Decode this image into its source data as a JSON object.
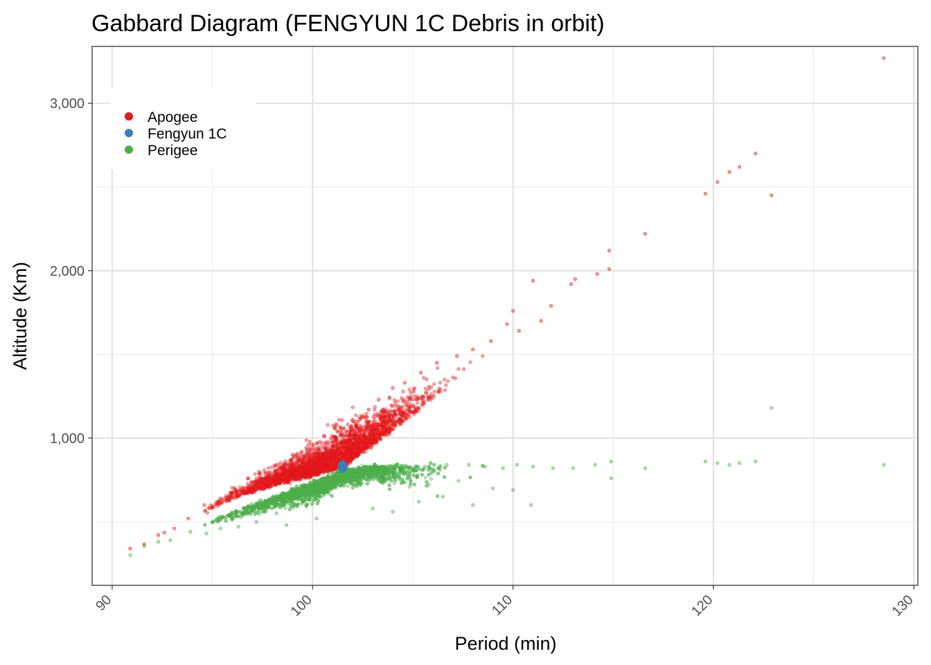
{
  "chart_data": {
    "type": "scatter",
    "title": "Gabbard Diagram (FENGYUN 1C Debris in orbit)",
    "xlabel": "Period (min)",
    "ylabel": "Altitude (Km)",
    "xlim": [
      89.0,
      130.2
    ],
    "ylim": [
      120,
      3340
    ],
    "x_ticks": [
      90,
      100,
      110,
      120,
      130
    ],
    "x_tick_labels": [
      "90",
      "100",
      "110",
      "120",
      "130"
    ],
    "y_ticks": [
      1000,
      2000,
      3000
    ],
    "y_tick_labels": [
      "1,000",
      "2,000",
      "3,000"
    ],
    "x_minor_ticks": [
      95,
      105,
      115,
      125
    ],
    "y_minor_ticks": [
      500,
      1500,
      2500
    ],
    "grid": true,
    "legend_position": "top-left",
    "series": [
      {
        "name": "Apogee",
        "color": "#e41a1c",
        "point_count": 3000,
        "values": [
          [
            90.9,
            340
          ],
          [
            91.6,
            365
          ],
          [
            92.3,
            420
          ],
          [
            92.6,
            435
          ],
          [
            93.1,
            460
          ],
          [
            93.8,
            520
          ],
          [
            94.6,
            600
          ],
          [
            95.4,
            640
          ],
          [
            96.1,
            700
          ],
          [
            96.8,
            760
          ],
          [
            97.4,
            790
          ],
          [
            98.2,
            840
          ],
          [
            99.0,
            900
          ],
          [
            99.8,
            960
          ],
          [
            100.6,
            1010
          ],
          [
            101.4,
            1060
          ],
          [
            102.0,
            1110
          ],
          [
            102.8,
            1170
          ],
          [
            103.3,
            1230
          ],
          [
            104.0,
            1300
          ],
          [
            104.6,
            1330
          ],
          [
            105.4,
            1390
          ],
          [
            106.2,
            1450
          ],
          [
            107.2,
            1490
          ],
          [
            108.0,
            1530
          ],
          [
            108.9,
            1580
          ],
          [
            109.7,
            1680
          ],
          [
            110.0,
            1760
          ],
          [
            110.3,
            1640
          ],
          [
            111.0,
            1940
          ],
          [
            111.4,
            1700
          ],
          [
            111.9,
            1790
          ],
          [
            112.9,
            1920
          ],
          [
            113.1,
            1950
          ],
          [
            114.2,
            1980
          ],
          [
            114.8,
            2010
          ],
          [
            114.8,
            2120
          ],
          [
            116.6,
            2220
          ],
          [
            119.6,
            2460
          ],
          [
            120.2,
            2530
          ],
          [
            120.8,
            2590
          ],
          [
            121.3,
            2620
          ],
          [
            122.1,
            2700
          ],
          [
            122.9,
            2450
          ],
          [
            128.5,
            3270
          ]
        ]
      },
      {
        "name": "Fengyun 1C",
        "color": "#377eb8",
        "point_count": 1,
        "values": [
          [
            101.5,
            830
          ]
        ]
      },
      {
        "name": "Perigee",
        "color": "#4daf4a",
        "point_count": 3000,
        "values": [
          [
            90.9,
            300
          ],
          [
            91.6,
            355
          ],
          [
            92.3,
            380
          ],
          [
            92.9,
            390
          ],
          [
            93.9,
            440
          ],
          [
            94.7,
            430
          ],
          [
            95.4,
            460
          ],
          [
            96.3,
            470
          ],
          [
            97.2,
            500
          ],
          [
            98.2,
            550
          ],
          [
            99.1,
            600
          ],
          [
            100.0,
            680
          ],
          [
            101.0,
            740
          ],
          [
            101.8,
            790
          ],
          [
            102.5,
            820
          ],
          [
            103.4,
            830
          ],
          [
            104.5,
            835
          ],
          [
            105.6,
            830
          ],
          [
            106.7,
            840
          ],
          [
            107.8,
            840
          ],
          [
            108.6,
            830
          ],
          [
            109.5,
            820
          ],
          [
            110.2,
            840
          ],
          [
            111.0,
            830
          ],
          [
            112.0,
            820
          ],
          [
            113.0,
            820
          ],
          [
            114.1,
            840
          ],
          [
            114.9,
            860
          ],
          [
            114.9,
            760
          ],
          [
            116.6,
            820
          ],
          [
            119.6,
            860
          ],
          [
            120.2,
            850
          ],
          [
            120.8,
            840
          ],
          [
            121.3,
            850
          ],
          [
            122.1,
            860
          ],
          [
            122.9,
            1180
          ],
          [
            128.5,
            840
          ],
          [
            105.3,
            620
          ],
          [
            106.5,
            650
          ],
          [
            108.0,
            600
          ],
          [
            109.0,
            700
          ],
          [
            110.0,
            690
          ],
          [
            110.9,
            600
          ],
          [
            104.0,
            560
          ],
          [
            103.0,
            580
          ],
          [
            100.2,
            520
          ],
          [
            98.7,
            480
          ]
        ]
      }
    ]
  }
}
